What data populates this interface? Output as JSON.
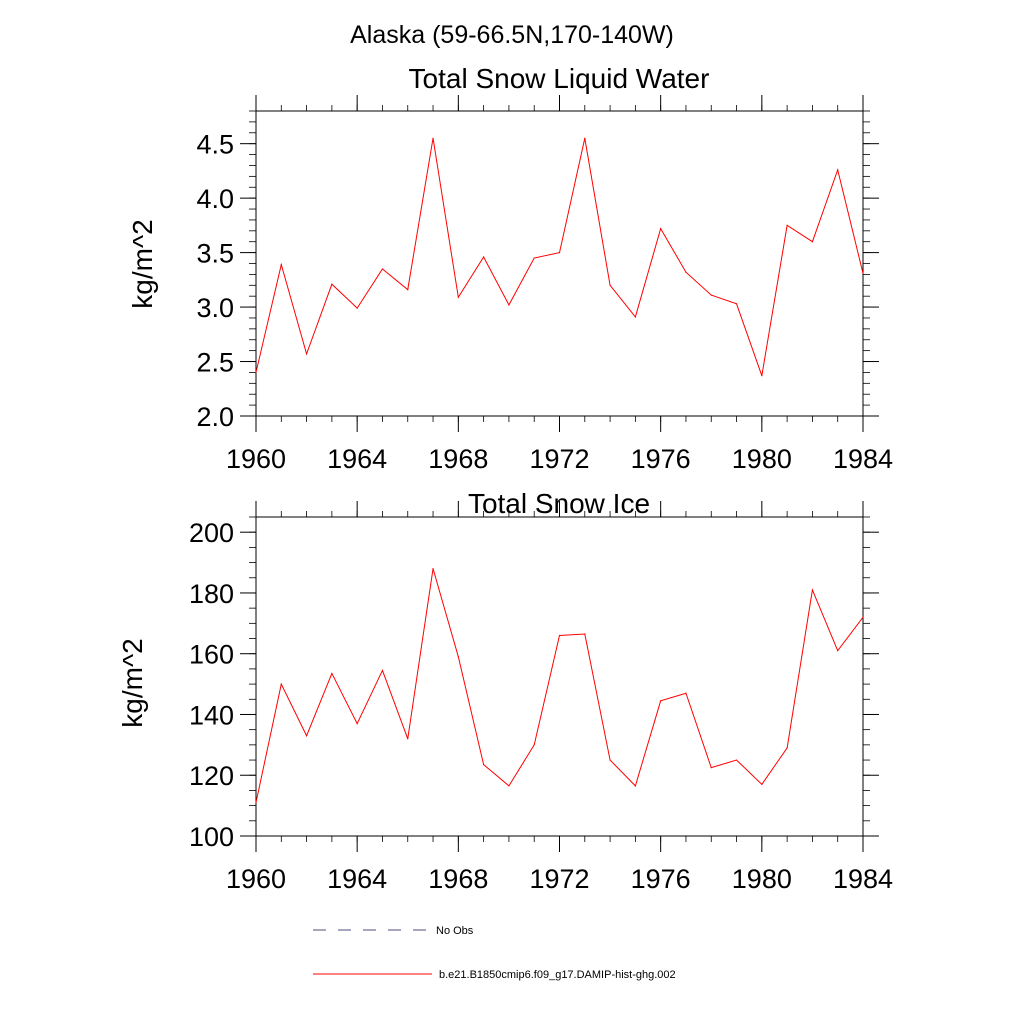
{
  "page_title": "Alaska (59-66.5N,170-140W)",
  "chart_data": [
    {
      "type": "line",
      "title": "Total Snow Liquid Water",
      "xlabel": "",
      "ylabel": "kg/m^2",
      "xlim": [
        1960,
        1984
      ],
      "ylim": [
        2.0,
        4.8
      ],
      "x_ticks": [
        1960,
        1964,
        1968,
        1972,
        1976,
        1980,
        1984
      ],
      "y_ticks": [
        2.0,
        2.5,
        3.0,
        3.5,
        4.0,
        4.5
      ],
      "x_tick_labels": [
        "1960",
        "1964",
        "1968",
        "1972",
        "1976",
        "1980",
        "1984"
      ],
      "y_tick_labels": [
        "2.0",
        "2.5",
        "3.0",
        "3.5",
        "4.0",
        "4.5"
      ],
      "x": [
        1960,
        1961,
        1962,
        1963,
        1964,
        1965,
        1966,
        1967,
        1968,
        1969,
        1970,
        1971,
        1972,
        1973,
        1974,
        1975,
        1976,
        1977,
        1978,
        1979,
        1980,
        1981,
        1982,
        1983,
        1984
      ],
      "series": [
        {
          "name": "b.e21.B1850cmip6.f09_g17.DAMIP-hist-ghg.002",
          "color": "#ff0000",
          "values": [
            2.4,
            3.39,
            2.57,
            3.21,
            2.99,
            3.35,
            3.16,
            4.55,
            3.09,
            3.46,
            3.02,
            3.45,
            3.5,
            4.55,
            3.2,
            2.91,
            3.72,
            3.32,
            3.11,
            3.03,
            2.37,
            3.75,
            3.6,
            4.26,
            3.31
          ]
        }
      ]
    },
    {
      "type": "line",
      "title": "Total Snow Ice",
      "xlabel": "",
      "ylabel": "kg/m^2",
      "xlim": [
        1960,
        1984
      ],
      "ylim": [
        100,
        205
      ],
      "x_ticks": [
        1960,
        1964,
        1968,
        1972,
        1976,
        1980,
        1984
      ],
      "y_ticks": [
        100,
        120,
        140,
        160,
        180,
        200
      ],
      "x_tick_labels": [
        "1960",
        "1964",
        "1968",
        "1972",
        "1976",
        "1980",
        "1984"
      ],
      "y_tick_labels": [
        "100",
        "120",
        "140",
        "160",
        "180",
        "200"
      ],
      "x": [
        1960,
        1961,
        1962,
        1963,
        1964,
        1965,
        1966,
        1967,
        1968,
        1969,
        1970,
        1971,
        1972,
        1973,
        1974,
        1975,
        1976,
        1977,
        1978,
        1979,
        1980,
        1981,
        1982,
        1983,
        1984
      ],
      "series": [
        {
          "name": "b.e21.B1850cmip6.f09_g17.DAMIP-hist-ghg.002",
          "color": "#ff0000",
          "values": [
            111,
            150,
            133,
            153.5,
            137,
            154.5,
            132,
            188,
            159,
            123.5,
            116.5,
            130,
            166,
            166.5,
            125,
            116.5,
            144.5,
            147,
            122.5,
            125,
            117,
            129,
            181,
            161,
            172
          ]
        }
      ]
    }
  ],
  "legend": {
    "items": [
      {
        "label": "No Obs",
        "color": "#4d4d80",
        "style": "dashed"
      },
      {
        "label": "b.e21.B1850cmip6.f09_g17.DAMIP-hist-ghg.002",
        "color": "#ff0000",
        "style": "solid"
      }
    ]
  }
}
